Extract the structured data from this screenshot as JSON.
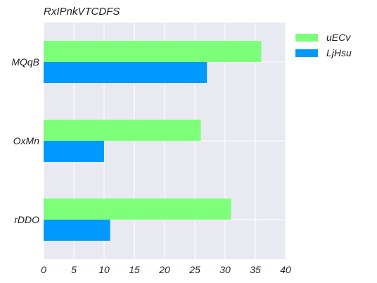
{
  "chart_data": {
    "type": "bar",
    "orientation": "horizontal",
    "title": "RxIPnkVTCDFS",
    "categories": [
      "MQqB",
      "OxMn",
      "rDDO"
    ],
    "series": [
      {
        "name": "uECv",
        "color": "#7dff7a",
        "values": [
          36,
          26,
          31
        ]
      },
      {
        "name": "LjHsu",
        "color": "#0099ff",
        "values": [
          27,
          10,
          11
        ]
      }
    ],
    "xlim": [
      0,
      40
    ],
    "xticks": [
      0,
      5,
      10,
      15,
      20,
      25,
      30,
      35,
      40
    ],
    "grid": true,
    "legend_position": "top-right",
    "background_color": "#e9e9f1"
  }
}
